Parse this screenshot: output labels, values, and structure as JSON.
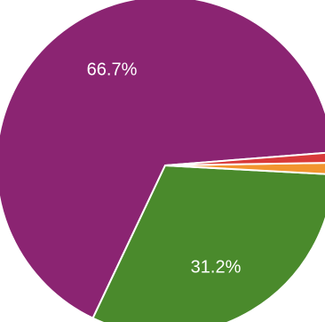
{
  "chart_data": {
    "type": "pie",
    "slices": [
      {
        "label": "",
        "value": 66.7,
        "value_label": "66.7%",
        "color": "#8b2472"
      },
      {
        "label": "",
        "value": 31.2,
        "value_label": "31.2%",
        "color": "#4a8a2c"
      },
      {
        "label": "",
        "value": 1.1,
        "value_label": "",
        "color": "#f2952f"
      },
      {
        "label": "",
        "value": 1.0,
        "value_label": "",
        "color": "#d83a3a"
      }
    ],
    "title": "",
    "legend": "none"
  }
}
